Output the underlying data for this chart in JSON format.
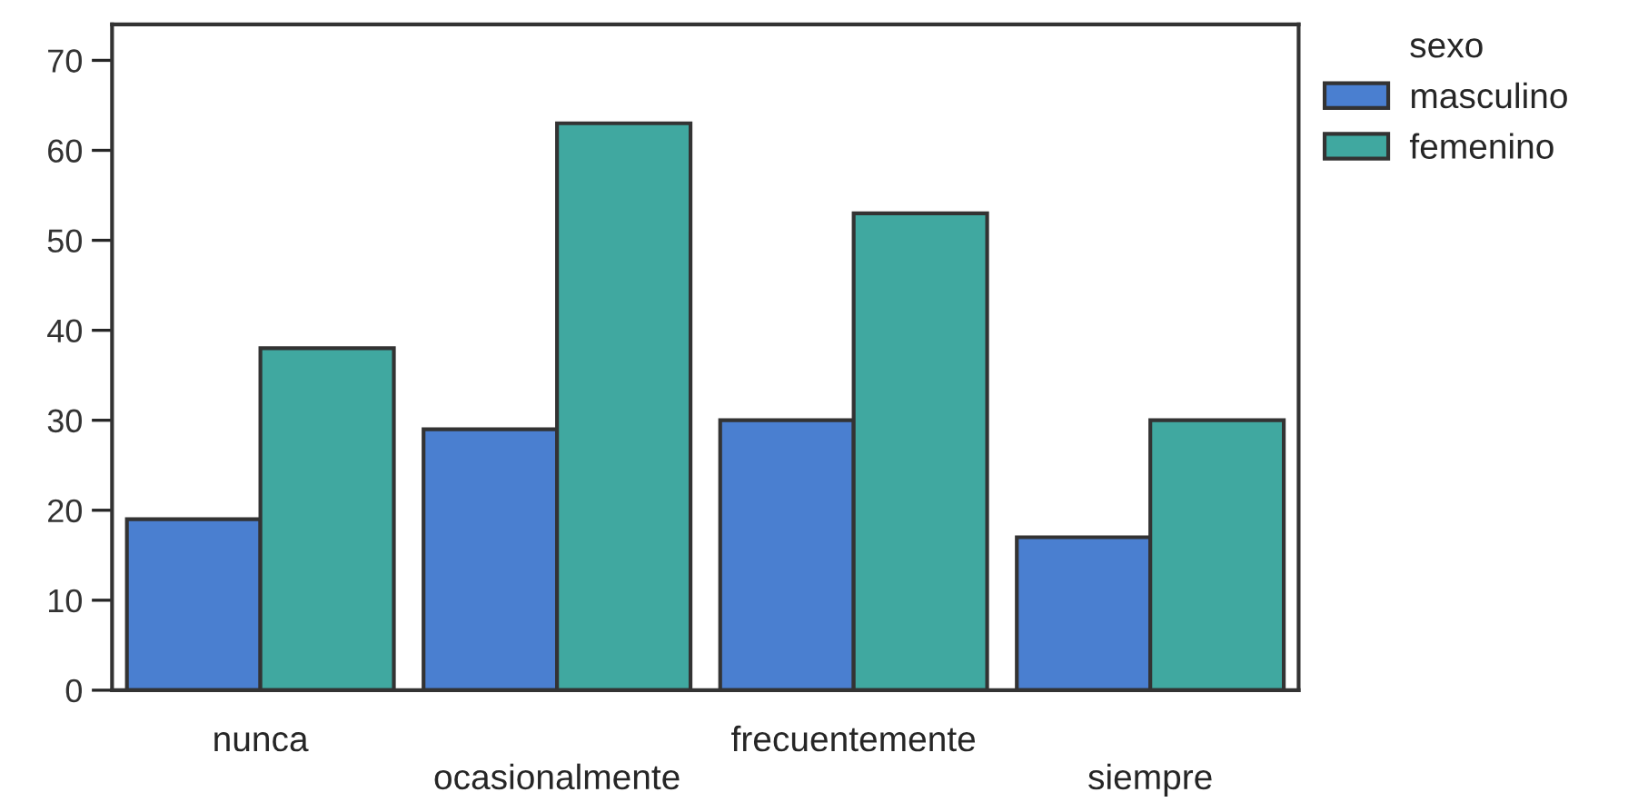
{
  "chart_data": {
    "type": "bar",
    "categories": [
      "nunca",
      "ocasionalmente",
      "frecuentemente",
      "siempre"
    ],
    "series": [
      {
        "name": "masculino",
        "color": "#4a7fd0",
        "values": [
          19,
          29,
          30,
          17
        ]
      },
      {
        "name": "femenino",
        "color": "#40a8a0",
        "values": [
          38,
          63,
          53,
          30
        ]
      }
    ],
    "legend_title": "sexo",
    "legend": "top right",
    "ylim": [
      0,
      74
    ],
    "yticks": [
      0,
      10,
      20,
      30,
      40,
      50,
      60,
      70
    ],
    "grid": false
  }
}
